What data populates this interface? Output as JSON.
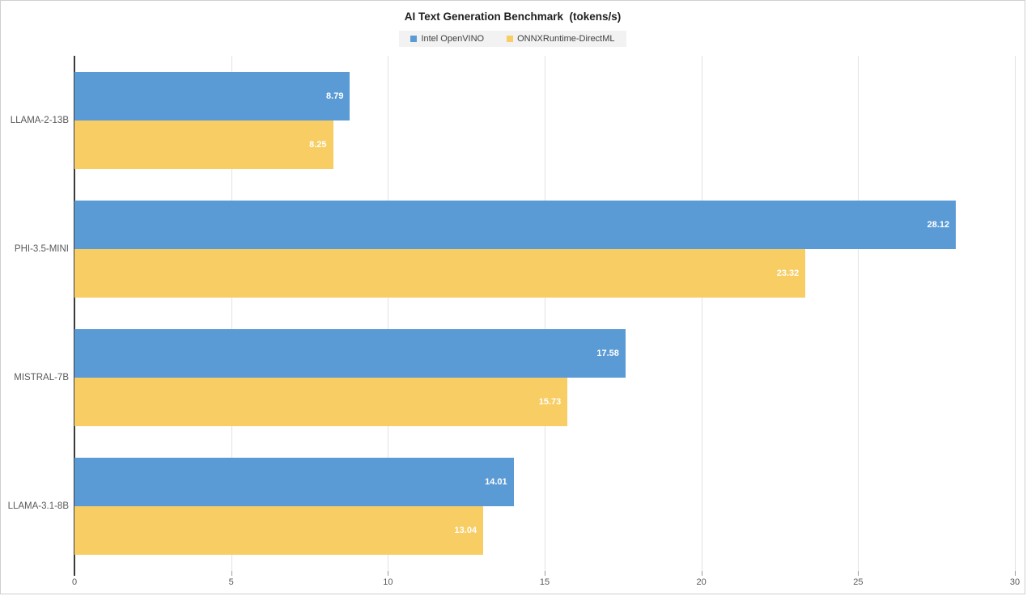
{
  "chart_data": {
    "type": "bar",
    "orientation": "horizontal",
    "title": "AI Text Generation Benchmark  (tokens/s)",
    "categories": [
      "LLAMA-2-13B",
      "PHI-3.5-MINI",
      "MISTRAL-7B",
      "LLAMA-3.1-8B"
    ],
    "series": [
      {
        "name": "Intel OpenVINO",
        "color": "#5B9BD5",
        "values": [
          8.79,
          28.12,
          17.58,
          14.01
        ]
      },
      {
        "name": "ONNXRuntime-DirectML",
        "color": "#F7CD64",
        "values": [
          8.25,
          23.32,
          15.73,
          13.04
        ]
      }
    ],
    "xlim": [
      0,
      30
    ],
    "xticks": [
      0,
      5,
      10,
      15,
      20,
      25,
      30
    ],
    "grid": "vertical",
    "legend_position": "top-center",
    "value_label_decimals": 2
  },
  "style_colors": {
    "series_blue": "#5B9BD5",
    "series_yellow": "#F7CD64",
    "gridline": "#e2e2e2",
    "axis_line": "#3a3a3a",
    "tick_text": "#595959",
    "value_label_text": "#ffffff",
    "legend_background": "#f2f2f2"
  }
}
